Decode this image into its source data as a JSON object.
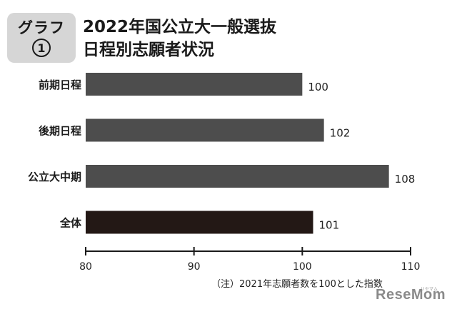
{
  "badge": {
    "label": "グラフ",
    "number": "1"
  },
  "title": {
    "line1": "2022年国公立大一般選抜",
    "line2": "日程別志願者状況"
  },
  "chart_data": {
    "type": "bar",
    "orientation": "horizontal",
    "categories": [
      "前期日程",
      "後期日程",
      "公立大中期",
      "全体"
    ],
    "values": [
      100,
      102,
      108,
      101
    ],
    "bar_colors": [
      "#4d4d4d",
      "#4d4d4d",
      "#4d4d4d",
      "#231815"
    ],
    "xlim": [
      80,
      110
    ],
    "xticks": [
      80,
      90,
      100,
      110
    ],
    "grid": false,
    "title": "2022年国公立大一般選抜 日程別志願者状況"
  },
  "note": "（注）2021年志願者数を100とした指数",
  "logo": {
    "text": "ReseMom",
    "sub": "リセマム"
  }
}
